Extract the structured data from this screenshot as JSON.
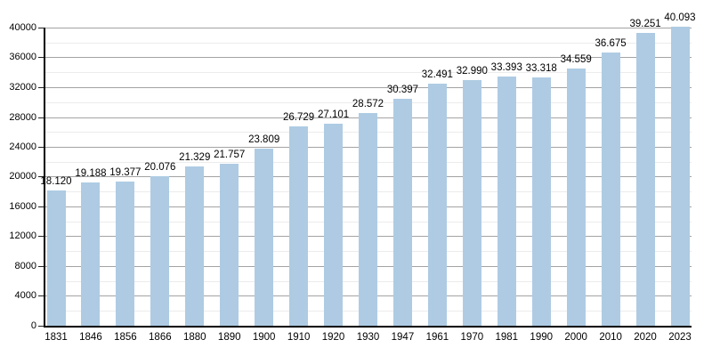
{
  "chart_data": {
    "type": "bar",
    "title": "",
    "xlabel": "",
    "ylabel": "",
    "categories": [
      "1831",
      "1846",
      "1856",
      "1866",
      "1880",
      "1890",
      "1900",
      "1910",
      "1920",
      "1930",
      "1947",
      "1961",
      "1970",
      "1981",
      "1990",
      "2000",
      "2010",
      "2020",
      "2023"
    ],
    "values": [
      18120,
      19188,
      19377,
      20076,
      21329,
      21757,
      23809,
      26729,
      27101,
      28572,
      30397,
      32491,
      32990,
      33393,
      33318,
      34559,
      36675,
      39251,
      40093
    ],
    "value_labels": [
      "18.120",
      "19.188",
      "19.377",
      "20.076",
      "21.329",
      "21.757",
      "23.809",
      "26.729",
      "27.101",
      "28.572",
      "30.397",
      "32.491",
      "32.990",
      "33.393",
      "33.318",
      "34.559",
      "36.675",
      "39.251",
      "40.093"
    ],
    "ylim": [
      0,
      40000
    ],
    "y_major_ticks": [
      0,
      4000,
      8000,
      12000,
      16000,
      20000,
      24000,
      28000,
      32000,
      36000,
      40000
    ],
    "y_tick_labels": [
      "0",
      "4000",
      "8000",
      "12000",
      "16000",
      "20000",
      "24000",
      "28000",
      "32000",
      "36000",
      "40000"
    ],
    "y_minor_step": 2000,
    "grid": true,
    "legend": false,
    "colors": {
      "bar": "#aecbe3",
      "grid_major": "#a3a3a3",
      "grid_minor": "#ececec",
      "axis": "#000000",
      "text": "#000000",
      "background": "#ffffff"
    }
  }
}
